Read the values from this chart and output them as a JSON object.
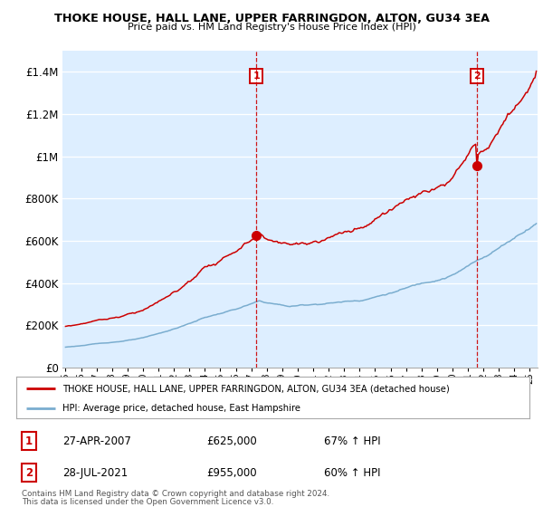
{
  "title": "THOKE HOUSE, HALL LANE, UPPER FARRINGDON, ALTON, GU34 3EA",
  "subtitle": "Price paid vs. HM Land Registry's House Price Index (HPI)",
  "legend_line1": "THOKE HOUSE, HALL LANE, UPPER FARRINGDON, ALTON, GU34 3EA (detached house)",
  "legend_line2": "HPI: Average price, detached house, East Hampshire",
  "marker1_date": "27-APR-2007",
  "marker1_price": "£625,000",
  "marker1_hpi": "67% ↑ HPI",
  "marker1_year": 2007.32,
  "marker1_value": 625000,
  "marker2_date": "28-JUL-2021",
  "marker2_price": "£955,000",
  "marker2_hpi": "60% ↑ HPI",
  "marker2_year": 2021.57,
  "marker2_value": 955000,
  "footnote1": "Contains HM Land Registry data © Crown copyright and database right 2024.",
  "footnote2": "This data is licensed under the Open Government Licence v3.0.",
  "red_color": "#cc0000",
  "blue_color": "#7aadcf",
  "plot_bg_color": "#ddeeff",
  "background_color": "#ffffff",
  "grid_color": "#ffffff",
  "ylim_max": 1500000,
  "ylim_min": 0,
  "xlim_min": 1994.8,
  "xlim_max": 2025.5
}
